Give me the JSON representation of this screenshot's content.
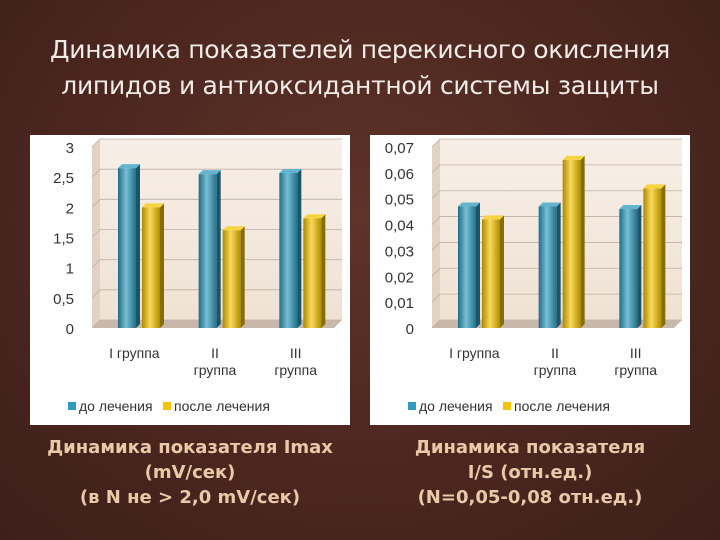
{
  "slide": {
    "title_line1": "Динамика показателей перекисного окисления",
    "title_line2": "липидов и антиоксидантной системы защиты"
  },
  "colors": {
    "series1": "#2f9bbf",
    "series2": "#f5c400",
    "wall": "#efe2d4",
    "floor": "#c8b8ab"
  },
  "chart_data": [
    {
      "type": "bar",
      "categories": [
        [
          "I группа"
        ],
        [
          "II",
          "группа"
        ],
        [
          "III",
          "группа"
        ]
      ],
      "series": [
        {
          "name": "до лечения",
          "values": [
            2.65,
            2.55,
            2.57
          ]
        },
        {
          "name": "после лечения",
          "values": [
            2.0,
            1.62,
            1.82
          ]
        }
      ],
      "ylim": [
        0,
        3
      ],
      "ticks": [
        "0",
        "0,5",
        "1",
        "1,5",
        "2",
        "2,5",
        "3"
      ],
      "legend": "bottom",
      "caption": [
        "Динамика показателя Imax",
        "(mV/сек)",
        "(в N не > 2,0 mV/сек)"
      ]
    },
    {
      "type": "bar",
      "categories": [
        [
          "I группа"
        ],
        [
          "II",
          "группа"
        ],
        [
          "III",
          "группа"
        ]
      ],
      "series": [
        {
          "name": "до лечения",
          "values": [
            0.047,
            0.047,
            0.046
          ]
        },
        {
          "name": "после лечения",
          "values": [
            0.042,
            0.065,
            0.054
          ]
        }
      ],
      "ylim": [
        0,
        0.07
      ],
      "ticks": [
        "0",
        "0,01",
        "0,02",
        "0,03",
        "0,04",
        "0,05",
        "0,06",
        "0,07"
      ],
      "legend": "bottom",
      "caption": [
        "Динамика показателя",
        "I/S (отн.ед.)",
        "(N=0,05-0,08 отн.ед.)"
      ]
    }
  ]
}
